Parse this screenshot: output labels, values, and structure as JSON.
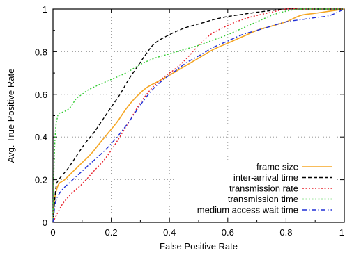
{
  "chart_data": {
    "type": "line",
    "title": "",
    "xlabel": "False Positive Rate",
    "ylabel": "Avg. True Positive Rate",
    "xlim": [
      0,
      1
    ],
    "ylim": [
      0,
      1
    ],
    "xticks": [
      "0",
      "0.2",
      "0.4",
      "0.6",
      "0.8",
      "1"
    ],
    "yticks": [
      "0",
      "0.2",
      "0.4",
      "0.6",
      "0.8",
      "1"
    ],
    "grid": "dotted",
    "legend_position": "bottom-right",
    "series": [
      {
        "name": "frame size",
        "color": "#f5a623",
        "dash": "solid",
        "x": [
          0,
          0.005,
          0.01,
          0.02,
          0.04,
          0.07,
          0.1,
          0.13,
          0.16,
          0.19,
          0.22,
          0.25,
          0.28,
          0.32,
          0.36,
          0.4,
          0.45,
          0.5,
          0.55,
          0.6,
          0.65,
          0.7,
          0.75,
          0.8,
          0.85,
          0.9,
          0.95,
          1.0
        ],
        "y": [
          0,
          0.1,
          0.14,
          0.18,
          0.2,
          0.24,
          0.28,
          0.32,
          0.37,
          0.42,
          0.47,
          0.53,
          0.58,
          0.63,
          0.66,
          0.69,
          0.73,
          0.77,
          0.81,
          0.84,
          0.87,
          0.9,
          0.92,
          0.94,
          0.97,
          0.98,
          0.99,
          1.0
        ]
      },
      {
        "name": "inter-arrival time",
        "color": "#000000",
        "dash": "dashed",
        "x": [
          0,
          0.01,
          0.02,
          0.05,
          0.08,
          0.11,
          0.14,
          0.17,
          0.2,
          0.23,
          0.26,
          0.29,
          0.32,
          0.35,
          0.4,
          0.45,
          0.5,
          0.55,
          0.6,
          0.65,
          0.7,
          0.75,
          0.8,
          0.85,
          0.9,
          0.95,
          1.0
        ],
        "y": [
          0,
          0.16,
          0.2,
          0.25,
          0.31,
          0.37,
          0.42,
          0.48,
          0.54,
          0.6,
          0.67,
          0.73,
          0.79,
          0.84,
          0.88,
          0.91,
          0.93,
          0.95,
          0.965,
          0.975,
          0.985,
          0.993,
          1.0,
          1.0,
          1.0,
          1.0,
          1.0
        ]
      },
      {
        "name": "transmission rate",
        "color": "#e8202a",
        "dash": "dotted",
        "x": [
          0,
          0.03,
          0.06,
          0.1,
          0.14,
          0.18,
          0.22,
          0.26,
          0.3,
          0.34,
          0.38,
          0.42,
          0.46,
          0.5,
          0.54,
          0.58,
          0.62,
          0.66,
          0.7,
          0.75,
          0.8,
          0.85,
          0.9,
          0.95,
          1.0
        ],
        "y": [
          0,
          0.08,
          0.13,
          0.18,
          0.24,
          0.3,
          0.38,
          0.47,
          0.56,
          0.63,
          0.68,
          0.72,
          0.77,
          0.83,
          0.88,
          0.91,
          0.935,
          0.955,
          0.97,
          0.985,
          1.0,
          1.0,
          1.0,
          1.0,
          1.0
        ]
      },
      {
        "name": "transmission time",
        "color": "#33cc33",
        "dash": "dotted",
        "x": [
          0,
          0.003,
          0.006,
          0.01,
          0.015,
          0.02,
          0.04,
          0.06,
          0.08,
          0.1,
          0.12,
          0.15,
          0.2,
          0.25,
          0.3,
          0.35,
          0.4,
          0.45,
          0.5,
          0.55,
          0.6,
          0.65,
          0.7,
          0.75,
          0.8,
          0.85,
          0.9,
          0.95,
          1.0
        ],
        "y": [
          0,
          0.22,
          0.36,
          0.45,
          0.49,
          0.51,
          0.52,
          0.54,
          0.58,
          0.6,
          0.62,
          0.64,
          0.67,
          0.7,
          0.74,
          0.77,
          0.79,
          0.81,
          0.83,
          0.855,
          0.88,
          0.91,
          0.94,
          0.97,
          0.99,
          1.0,
          1.0,
          1.0,
          1.0
        ]
      },
      {
        "name": "medium access wait time",
        "color": "#1f2fd6",
        "dash": "dashdot",
        "x": [
          0,
          0.01,
          0.03,
          0.06,
          0.1,
          0.14,
          0.18,
          0.22,
          0.26,
          0.3,
          0.34,
          0.38,
          0.42,
          0.46,
          0.5,
          0.55,
          0.6,
          0.65,
          0.7,
          0.75,
          0.8,
          0.85,
          0.9,
          0.95,
          1.0
        ],
        "y": [
          0,
          0.1,
          0.15,
          0.19,
          0.24,
          0.29,
          0.34,
          0.4,
          0.47,
          0.55,
          0.62,
          0.67,
          0.71,
          0.75,
          0.78,
          0.82,
          0.85,
          0.88,
          0.9,
          0.92,
          0.94,
          0.95,
          0.96,
          0.97,
          1.0
        ]
      }
    ]
  }
}
